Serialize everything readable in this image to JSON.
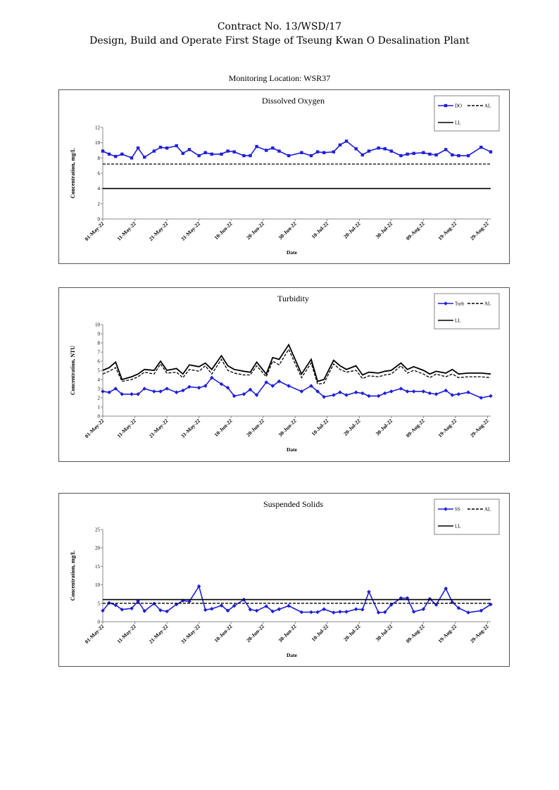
{
  "header": {
    "line1": "Contract No. 13/WSD/17",
    "line2": "Design, Build and Operate First Stage of Tseung Kwan O Desalination Plant"
  },
  "monitoring_location": "Monitoring Location: WSR37",
  "colors": {
    "series": "#1f1fd6",
    "limit": "#000000"
  },
  "chart_data": [
    {
      "type": "line",
      "title": "Dissolved Oxygen",
      "xlabel": "Date",
      "ylabel": "Concentration, mg/L",
      "ylim": [
        0,
        12
      ],
      "yticks": [
        "0",
        "2",
        "4",
        "6",
        "8",
        "10",
        "12"
      ],
      "xlim": [
        0,
        121
      ],
      "xtick_labels": [
        "01-May-22",
        "11-May-22",
        "21-May-22",
        "31-May-22",
        "10-Jun-22",
        "20-Jun-22",
        "30-Jun-22",
        "10-Jul-22",
        "20-Jul-22",
        "30-Jul-22",
        "09-Aug-22",
        "19-Aug-22",
        "29-Aug-22"
      ],
      "x_day_offsets": [
        0,
        2,
        4,
        6,
        9,
        11,
        13,
        16,
        18,
        20,
        23,
        25,
        27,
        30,
        32,
        34,
        37,
        39,
        41,
        44,
        46,
        48,
        51,
        53,
        55,
        58,
        62,
        65,
        67,
        69,
        72,
        74,
        76,
        79,
        81,
        83,
        86,
        88,
        90,
        93,
        95,
        97,
        100,
        102,
        104,
        107,
        109,
        111,
        114,
        118,
        121
      ],
      "legend": [
        {
          "label": "DO",
          "style": "solid-marker"
        },
        {
          "label": "AL",
          "style": "dashed"
        },
        {
          "label": "LL",
          "style": "solid"
        }
      ],
      "legend_position": "top-right",
      "grid": false,
      "series": [
        {
          "name": "DO",
          "marker": "square",
          "values": [
            8.9,
            8.5,
            8.2,
            8.5,
            8.0,
            9.3,
            8.1,
            8.9,
            9.4,
            9.3,
            9.6,
            8.6,
            9.1,
            8.3,
            8.7,
            8.5,
            8.5,
            8.9,
            8.8,
            8.3,
            8.3,
            9.5,
            9.0,
            9.3,
            8.9,
            8.3,
            8.7,
            8.3,
            8.8,
            8.7,
            8.8,
            9.7,
            10.2,
            9.2,
            8.4,
            8.9,
            9.3,
            9.2,
            8.9,
            8.3,
            8.5,
            8.6,
            8.7,
            8.5,
            8.4,
            9.1,
            8.4,
            8.3,
            8.3,
            9.4,
            8.8
          ]
        },
        {
          "name": "AL",
          "style": "dashed",
          "constant": 7.2
        },
        {
          "name": "LL",
          "style": "solid",
          "constant": 4.0
        }
      ]
    },
    {
      "type": "line",
      "title": "Turbidity",
      "xlabel": "Date",
      "ylabel": "Concentration, NTU",
      "ylim": [
        0,
        10
      ],
      "yticks": [
        "0",
        "1",
        "2",
        "3",
        "4",
        "5",
        "6",
        "7",
        "8",
        "9",
        "10"
      ],
      "xlim": [
        0,
        121
      ],
      "xtick_labels": [
        "01-May-22",
        "11-May-22",
        "21-May-22",
        "31-May-22",
        "10-Jun-22",
        "20-Jun-22",
        "30-Jun-22",
        "10-Jul-22",
        "20-Jul-22",
        "30-Jul-22",
        "09-Aug-22",
        "19-Aug-22",
        "29-Aug-22"
      ],
      "x_day_offsets": [
        0,
        2,
        4,
        6,
        9,
        11,
        13,
        16,
        18,
        20,
        23,
        25,
        27,
        30,
        32,
        34,
        37,
        39,
        41,
        44,
        46,
        48,
        51,
        53,
        55,
        58,
        62,
        65,
        67,
        69,
        72,
        74,
        76,
        79,
        81,
        83,
        86,
        88,
        90,
        93,
        95,
        97,
        100,
        102,
        104,
        107,
        109,
        111,
        114,
        118,
        121
      ],
      "legend": [
        {
          "label": "Turb",
          "style": "solid-marker"
        },
        {
          "label": "AL",
          "style": "dashed"
        },
        {
          "label": "LL",
          "style": "solid"
        }
      ],
      "legend_position": "top-right",
      "grid": false,
      "series": [
        {
          "name": "Turb",
          "marker": "diamond",
          "values": [
            2.7,
            2.6,
            3.0,
            2.4,
            2.4,
            2.4,
            3.0,
            2.7,
            2.7,
            3.0,
            2.6,
            2.8,
            3.2,
            3.1,
            3.3,
            4.2,
            3.5,
            3.1,
            2.2,
            2.4,
            2.9,
            2.3,
            3.7,
            3.3,
            3.8,
            3.3,
            2.7,
            3.3,
            2.7,
            2.1,
            2.3,
            2.6,
            2.3,
            2.6,
            2.5,
            2.2,
            2.2,
            2.5,
            2.7,
            3.0,
            2.7,
            2.7,
            2.7,
            2.5,
            2.4,
            2.8,
            2.3,
            2.4,
            2.6,
            2.0,
            2.2
          ]
        },
        {
          "name": "AL",
          "style": "dashed",
          "values": [
            4.6,
            4.9,
            5.3,
            3.8,
            4.0,
            4.3,
            4.8,
            4.6,
            5.7,
            4.7,
            4.8,
            4.2,
            5.1,
            4.9,
            5.5,
            4.6,
            6.2,
            5.0,
            4.7,
            4.5,
            4.5,
            5.5,
            4.3,
            6.0,
            5.6,
            7.3,
            4.2,
            5.8,
            3.5,
            3.6,
            5.7,
            5.1,
            4.8,
            5.0,
            4.1,
            4.4,
            4.3,
            4.5,
            4.6,
            5.5,
            4.7,
            5.0,
            4.6,
            4.2,
            4.6,
            4.3,
            4.6,
            4.2,
            4.3,
            4.3,
            4.2
          ]
        },
        {
          "name": "LL",
          "style": "solid",
          "values": [
            5.0,
            5.3,
            5.9,
            4.0,
            4.3,
            4.6,
            5.1,
            5.0,
            6.0,
            5.0,
            5.2,
            4.6,
            5.6,
            5.4,
            5.8,
            5.1,
            6.6,
            5.5,
            5.1,
            4.9,
            4.8,
            5.9,
            4.6,
            6.4,
            6.2,
            7.8,
            4.6,
            6.2,
            3.8,
            4.0,
            6.1,
            5.5,
            5.1,
            5.5,
            4.5,
            4.8,
            4.7,
            4.9,
            5.0,
            5.8,
            5.1,
            5.4,
            5.0,
            4.6,
            4.9,
            4.7,
            5.1,
            4.6,
            4.7,
            4.7,
            4.6
          ]
        }
      ]
    },
    {
      "type": "line",
      "title": "Suspended Solids",
      "xlabel": "Date",
      "ylabel": "Concentration, mg/L",
      "ylim": [
        0,
        25
      ],
      "yticks": [
        "0",
        "5",
        "10",
        "15",
        "20",
        "25"
      ],
      "xlim": [
        0,
        121
      ],
      "xtick_labels": [
        "01-May-22",
        "11-May-22",
        "21-May-22",
        "31-May-22",
        "10-Jun-22",
        "20-Jun-22",
        "30-Jun-22",
        "10-Jul-22",
        "20-Jul-22",
        "30-Jul-22",
        "09-Aug-22",
        "19-Aug-22",
        "29-Aug-22"
      ],
      "x_day_offsets": [
        0,
        2,
        4,
        6,
        9,
        11,
        13,
        16,
        18,
        20,
        23,
        25,
        27,
        30,
        32,
        34,
        37,
        39,
        41,
        44,
        46,
        48,
        51,
        53,
        55,
        58,
        62,
        65,
        67,
        69,
        72,
        74,
        76,
        79,
        81,
        83,
        86,
        88,
        90,
        93,
        95,
        97,
        100,
        102,
        104,
        107,
        109,
        111,
        114,
        118,
        121
      ],
      "legend": [
        {
          "label": "SS",
          "style": "solid-marker"
        },
        {
          "label": "AL",
          "style": "dashed"
        },
        {
          "label": "LL",
          "style": "solid"
        }
      ],
      "legend_position": "top-right",
      "grid": false,
      "series": [
        {
          "name": "SS",
          "marker": "diamond",
          "values": [
            3.0,
            5.1,
            4.5,
            3.3,
            3.6,
            5.6,
            2.9,
            4.9,
            3.1,
            2.8,
            4.7,
            5.7,
            5.5,
            9.6,
            3.2,
            3.5,
            4.4,
            3.0,
            4.3,
            6.0,
            3.3,
            3.0,
            4.2,
            2.8,
            3.4,
            4.3,
            2.6,
            2.6,
            2.6,
            3.4,
            2.5,
            2.7,
            2.7,
            3.4,
            3.3,
            8.1,
            2.5,
            2.6,
            4.6,
            6.4,
            6.4,
            2.7,
            3.4,
            6.2,
            4.6,
            9.0,
            5.3,
            3.7,
            2.5,
            3.0,
            4.7
          ]
        },
        {
          "name": "AL",
          "style": "dashed",
          "constant": 5.0
        },
        {
          "name": "LL",
          "style": "solid",
          "constant": 6.0
        }
      ]
    }
  ]
}
